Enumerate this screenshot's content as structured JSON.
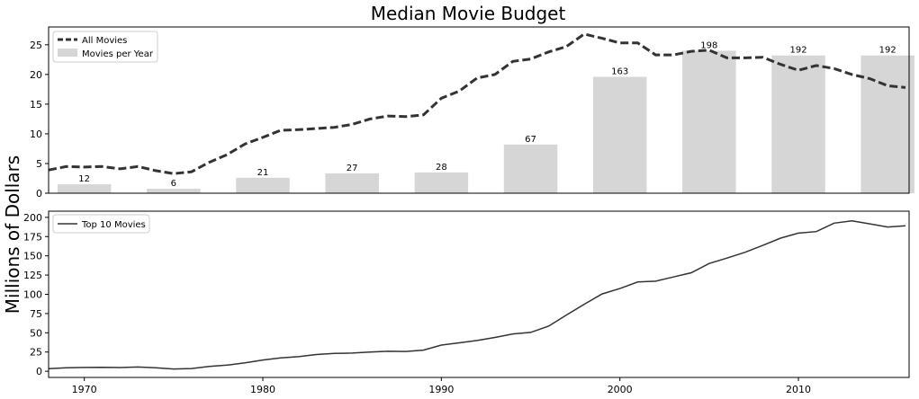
{
  "figure": {
    "title": "Median Movie Budget",
    "ylabel": "Millions of Dollars"
  },
  "chart_data": [
    {
      "type": "bar",
      "panel": "top",
      "title": "Median Movie Budget",
      "ylim": [
        0,
        28
      ],
      "yticks": [
        0,
        5,
        10,
        15,
        20,
        25
      ],
      "xlim": [
        1968,
        2016.2
      ],
      "bar_series": {
        "name": "Movies per Year",
        "color": "#d6d6d6",
        "x": [
          1970,
          1975,
          1980,
          1985,
          1990,
          1995,
          2000,
          2005,
          2010,
          2015
        ],
        "values": [
          1.5,
          0.75,
          2.6,
          3.35,
          3.5,
          8.2,
          19.6,
          24.0,
          23.2,
          23.2
        ],
        "labels": [
          "12",
          "6",
          "21",
          "27",
          "28",
          "67",
          "163",
          "198",
          "192",
          "192"
        ]
      },
      "line_series": {
        "name": "All Movies",
        "color": "#333333",
        "style": "dashed",
        "x": [
          1968,
          1969,
          1970,
          1971,
          1972,
          1973,
          1974,
          1975,
          1976,
          1977,
          1978,
          1979,
          1980,
          1981,
          1982,
          1983,
          1984,
          1985,
          1986,
          1987,
          1988,
          1989,
          1990,
          1991,
          1992,
          1993,
          1994,
          1995,
          1996,
          1997,
          1998,
          1999,
          2000,
          2001,
          2002,
          2003,
          2004,
          2005,
          2006,
          2007,
          2008,
          2009,
          2010,
          2011,
          2012,
          2013,
          2014,
          2015,
          2016
        ],
        "values": [
          3.9,
          4.5,
          4.4,
          4.5,
          4.1,
          4.5,
          3.8,
          3.3,
          3.6,
          5.2,
          6.5,
          8.3,
          9.4,
          10.6,
          10.7,
          10.9,
          11.1,
          11.6,
          12.5,
          13.0,
          12.9,
          13.2,
          16.0,
          17.2,
          19.4,
          20.0,
          22.2,
          22.6,
          23.8,
          24.7,
          26.8,
          26.1,
          25.3,
          25.3,
          23.3,
          23.3,
          23.9,
          24.1,
          22.8,
          22.8,
          22.9,
          21.7,
          20.7,
          21.5,
          21.0,
          20.0,
          19.3,
          18.1,
          17.8
        ]
      },
      "legend": {
        "placement": "top-left",
        "entries": [
          "All Movies",
          "Movies per Year"
        ]
      }
    },
    {
      "type": "line",
      "panel": "bottom",
      "xlim": [
        1968,
        2016.2
      ],
      "ylim": [
        -8,
        208
      ],
      "yticks": [
        0,
        25,
        50,
        75,
        100,
        125,
        150,
        175,
        200
      ],
      "xticks": [
        1970,
        1980,
        1990,
        2000,
        2010
      ],
      "series": [
        {
          "name": "Top 10 Movies",
          "color": "#333333",
          "style": "solid",
          "x": [
            1968,
            1969,
            1970,
            1971,
            1972,
            1973,
            1974,
            1975,
            1976,
            1977,
            1978,
            1979,
            1980,
            1981,
            1982,
            1983,
            1984,
            1985,
            1986,
            1987,
            1988,
            1989,
            1990,
            1991,
            1992,
            1993,
            1994,
            1995,
            1996,
            1997,
            1998,
            1999,
            2000,
            2001,
            2002,
            2003,
            2004,
            2005,
            2006,
            2007,
            2008,
            2009,
            2010,
            2011,
            2012,
            2013,
            2014,
            2015,
            2016
          ],
          "values": [
            3.5,
            4.5,
            5.0,
            5.2,
            4.8,
            5.5,
            4.5,
            3.0,
            3.6,
            6.3,
            8.0,
            11.0,
            14.7,
            17.4,
            19.0,
            21.8,
            23.2,
            23.6,
            25.0,
            26.0,
            25.8,
            27.5,
            34.0,
            37.0,
            40.0,
            44.0,
            48.5,
            50.5,
            58.5,
            73.0,
            87.0,
            100.5,
            107.5,
            116.0,
            117.0,
            122.5,
            128.0,
            140.0,
            147.0,
            154.5,
            163.5,
            173.0,
            179.5,
            181.5,
            192.5,
            195.5,
            191.5,
            187.5,
            189.0
          ]
        }
      ],
      "legend": {
        "placement": "top-left",
        "entries": [
          "Top 10 Movies"
        ]
      }
    }
  ]
}
